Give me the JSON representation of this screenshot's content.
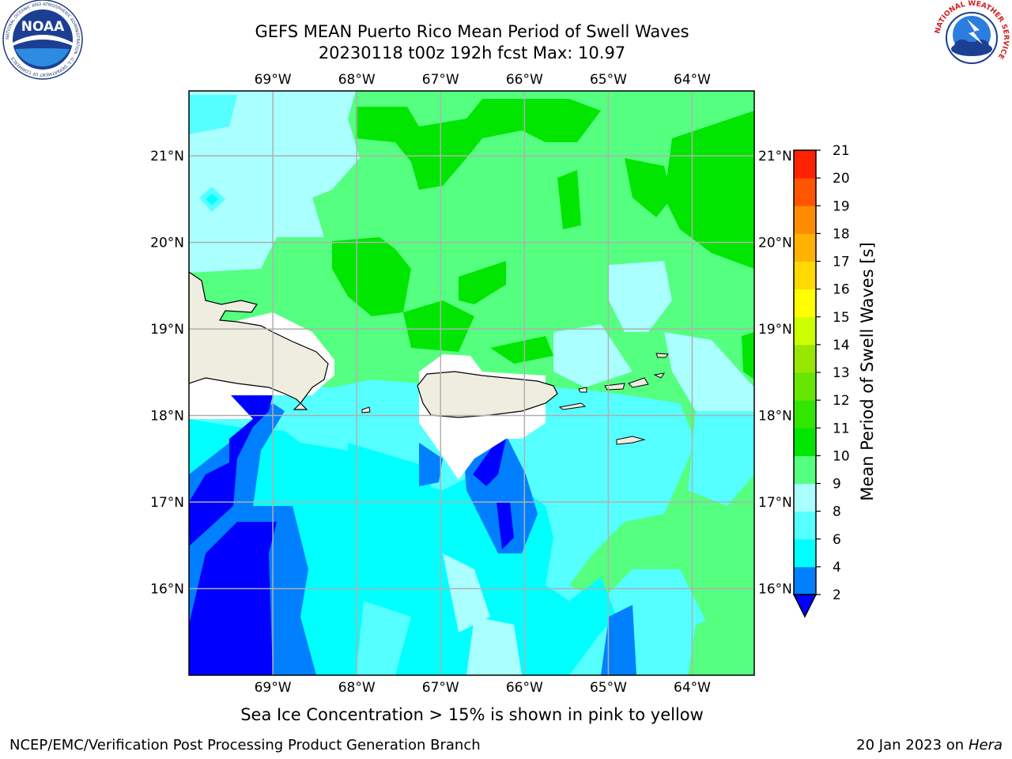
{
  "header": {
    "title_line1": "GEFS MEAN Puerto Rico Mean Period of Swell Waves",
    "title_line2": "20230118 t00z 192h fcst   Max: 10.97"
  },
  "logos": {
    "left": "NOAA",
    "left_ring_text": "NATIONAL OCEANIC AND ATMOSPHERIC ADMINISTRATION · U.S. DEPARTMENT OF COMMERCE",
    "right_ring_text": "NATIONAL WEATHER SERVICE"
  },
  "map": {
    "lon_labels": [
      "69°W",
      "68°W",
      "67°W",
      "66°W",
      "65°W",
      "64°W"
    ],
    "lon_values": [
      -69,
      -68,
      -67,
      -66,
      -65,
      -64
    ],
    "lat_labels": [
      "21°N",
      "20°N",
      "19°N",
      "18°N",
      "17°N",
      "16°N"
    ],
    "lat_values": [
      21,
      20,
      19,
      18,
      17,
      16
    ],
    "extent": {
      "lon_min": -70.0,
      "lon_max": -63.26,
      "lat_min": 15.0,
      "lat_max": 21.75
    },
    "land_color": "#eeeddf",
    "grid_color": "#b0b0b0"
  },
  "colorbar": {
    "label": "Mean Period of Swell Waves [s]",
    "ticks": [
      "2",
      "4",
      "6",
      "8",
      "9",
      "10",
      "11",
      "12",
      "13",
      "14",
      "15",
      "16",
      "17",
      "18",
      "19",
      "20",
      "21"
    ],
    "level_colors": [
      "#0000ff",
      "#0080ff",
      "#00ffff",
      "#55ffff",
      "#aaffff",
      "#55ff80",
      "#00e600",
      "#33e600",
      "#66e600",
      "#99e600",
      "#ccff00",
      "#ffff00",
      "#ffd900",
      "#ffb300",
      "#ff8c00",
      "#ff5500",
      "#ff2200",
      "#ff0000"
    ]
  },
  "note": "Sea Ice Concentration > 15% is shown in pink to yellow",
  "footer": {
    "left": "NCEP/EMC/Verification Post Processing Product Generation Branch",
    "right_prefix": "20 Jan 2023 on ",
    "right_machine": "Hera"
  }
}
